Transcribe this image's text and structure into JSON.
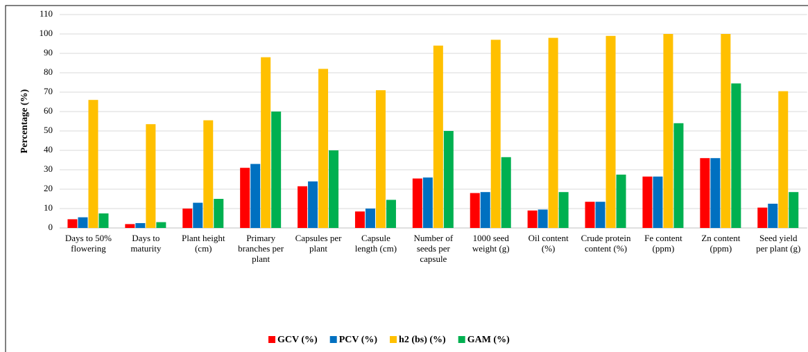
{
  "chart_data": {
    "type": "bar",
    "y_label": "Percentage (%)",
    "categories": [
      "Days to 50%\nflowering",
      "Days to\nmaturity",
      "Plant height\n(cm)",
      "Primary\nbranches per\nplant",
      "Capsules per\nplant",
      "Capsule\nlength (cm)",
      "Number of\nseeds per\ncapsule",
      "1000 seed\nweight (g)",
      "Oil content\n(%)",
      "Crude protein\ncontent (%)",
      "Fe content\n(ppm)",
      "Zn content\n(ppm)",
      "Seed yield\nper plant (g)"
    ],
    "series": [
      {
        "name": "GCV (%)",
        "color": "#ff0000",
        "values": [
          4.5,
          2,
          10,
          31,
          21.5,
          8.5,
          25.5,
          18,
          9,
          13.5,
          26.5,
          36,
          10.5
        ]
      },
      {
        "name": "PCV (%)",
        "color": "#0070c0",
        "values": [
          5.5,
          2.5,
          13,
          33,
          24,
          10,
          26,
          18.5,
          9.5,
          13.5,
          26.5,
          36,
          12.5
        ]
      },
      {
        "name": "h2 (bs) (%)",
        "color": "#ffc000",
        "values": [
          66,
          53.5,
          55.5,
          88,
          82,
          71,
          94,
          97,
          98,
          99,
          100,
          100,
          70.5
        ]
      },
      {
        "name": "GAM (%)",
        "color": "#00b050",
        "values": [
          7.5,
          3,
          15,
          60,
          40,
          14.5,
          50,
          36.5,
          18.5,
          27.5,
          54,
          74.5,
          18.5
        ]
      }
    ],
    "ylim": [
      0,
      110
    ],
    "yticks": [
      0,
      10,
      20,
      30,
      40,
      50,
      60,
      70,
      80,
      90,
      100,
      110
    ],
    "grid": true,
    "legend": "bottom"
  }
}
